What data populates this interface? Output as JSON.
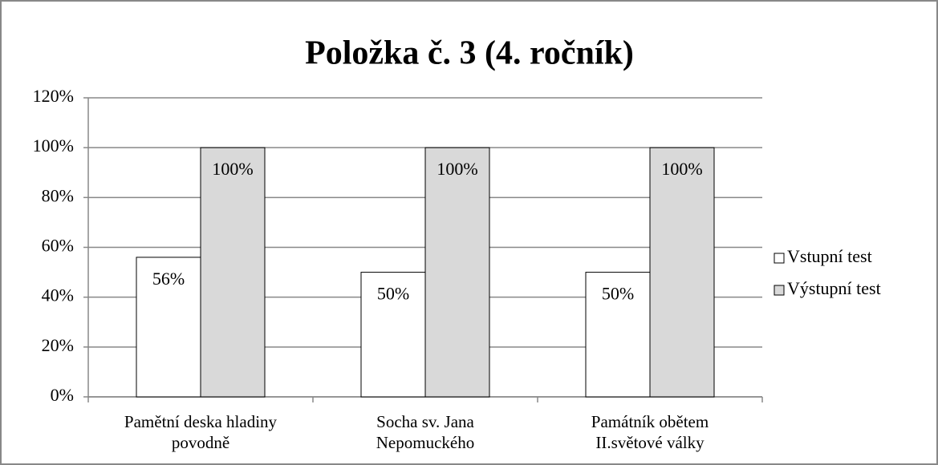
{
  "chart_data": {
    "type": "bar",
    "title": "Položka č. 3 (4. ročník)",
    "categories": [
      "Pamětní deska hladiny povodně",
      "Socha sv. Jana Nepomuckého",
      "Památník obětem II.světové války"
    ],
    "series": [
      {
        "name": "Vstupní test",
        "color": "#ffffff",
        "values": [
          56,
          50,
          50
        ],
        "value_labels": [
          "56%",
          "50%",
          "50%"
        ]
      },
      {
        "name": "Výstupní test",
        "color": "#d9d9d9",
        "values": [
          100,
          100,
          100
        ],
        "value_labels": [
          "100%",
          "100%",
          "100%"
        ]
      }
    ],
    "ylim": [
      0,
      120
    ],
    "yticks": [
      {
        "value": 0,
        "label": "0%"
      },
      {
        "value": 20,
        "label": "20%"
      },
      {
        "value": 40,
        "label": "40%"
      },
      {
        "value": 60,
        "label": "60%"
      },
      {
        "value": 80,
        "label": "80%"
      },
      {
        "value": 100,
        "label": "100%"
      },
      {
        "value": 120,
        "label": "120%"
      }
    ],
    "grid": true,
    "legend": "right"
  }
}
